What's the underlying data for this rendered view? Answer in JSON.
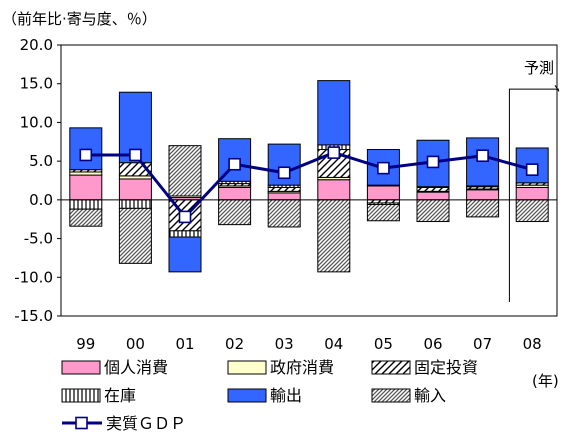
{
  "chart_data": {
    "type": "bar",
    "subtype": "stacked-bar-with-line",
    "unit_label": "（前年比·寄与度、％）",
    "categories": [
      "99",
      "00",
      "01",
      "02",
      "03",
      "04",
      "05",
      "06",
      "07",
      "08"
    ],
    "x_unit": "(年)",
    "ylim": [
      -15.0,
      20.0
    ],
    "yticks": [
      "20.0",
      "15.0",
      "10.0",
      "5.0",
      "0.0",
      "-5.0",
      "-10.0",
      "-15.0"
    ],
    "grid": false,
    "forecast_label": "予測",
    "forecast_category": "08",
    "series": [
      {
        "name": "個人消費",
        "kind": "bar",
        "color": "#ff99cc",
        "values": [
          3.2,
          2.7,
          0.3,
          1.6,
          0.9,
          2.6,
          1.8,
          1.0,
          1.3,
          1.6
        ]
      },
      {
        "name": "政府消費",
        "kind": "bar",
        "color": "#ffffcc",
        "values": [
          0.4,
          0.4,
          0.2,
          0.2,
          0.2,
          0.3,
          0.1,
          0.1,
          0.1,
          0.3
        ]
      },
      {
        "name": "固定投資",
        "kind": "bar",
        "color": "#ffffff",
        "pattern": "diagonal",
        "values": [
          0.3,
          1.7,
          -4.0,
          0.3,
          0.5,
          3.6,
          -0.4,
          0.5,
          0.3,
          0.3
        ]
      },
      {
        "name": "在庫",
        "kind": "bar",
        "color": "#ffffff",
        "pattern": "vertical",
        "values": [
          -1.2,
          -1.1,
          -0.8,
          0.3,
          0.3,
          0.6,
          -0.2,
          0.1,
          0.1,
          0.0
        ]
      },
      {
        "name": "輸出",
        "kind": "bar",
        "color": "#3366ff",
        "values": [
          5.4,
          9.1,
          -4.5,
          5.5,
          5.3,
          8.3,
          4.6,
          6.0,
          6.2,
          4.5
        ]
      },
      {
        "name": "輸入",
        "kind": "bar",
        "color": "#ffffff",
        "pattern": "dense",
        "values": [
          -2.2,
          -7.1,
          6.5,
          -3.2,
          -3.5,
          -9.3,
          -2.1,
          -2.8,
          -2.2,
          -2.8
        ]
      },
      {
        "name": "実質ＧＤＰ",
        "kind": "line",
        "color": "#000080",
        "values": [
          5.8,
          5.8,
          -2.2,
          4.6,
          3.5,
          6.1,
          4.1,
          4.9,
          5.7,
          3.9
        ]
      }
    ]
  }
}
